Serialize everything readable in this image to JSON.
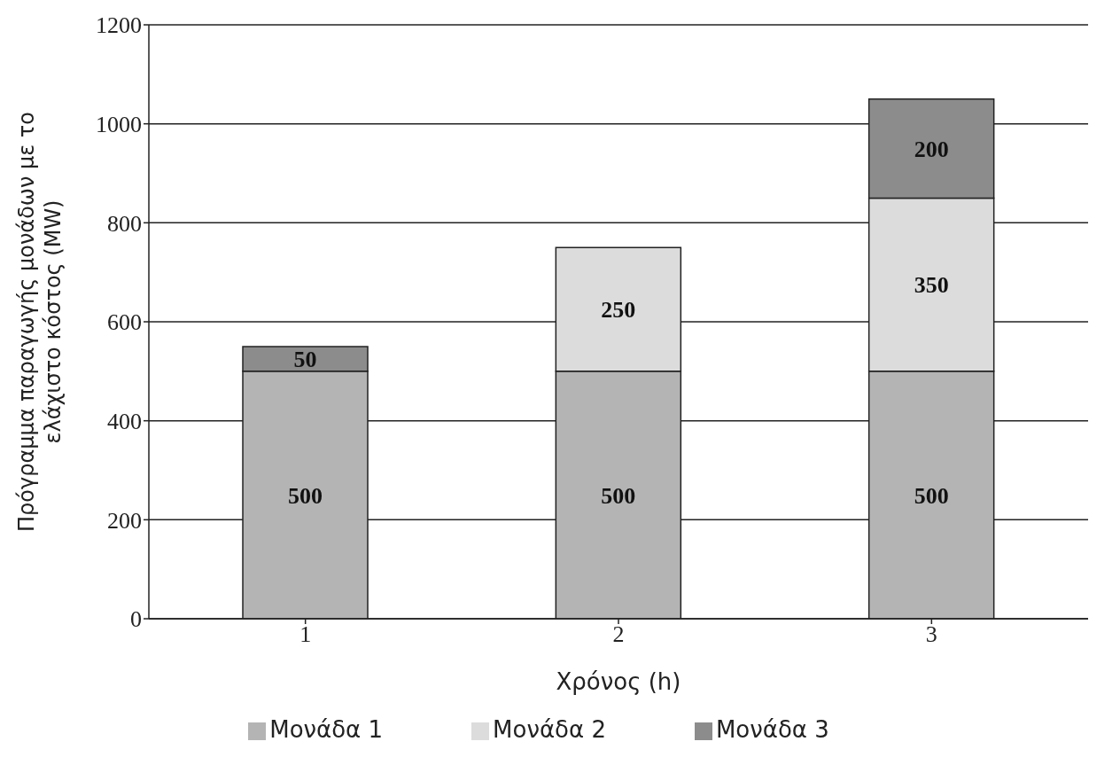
{
  "chart_data": {
    "type": "bar",
    "stacked": true,
    "xlabel": "Χρόνος (h)",
    "ylabel": "Πρόγραμμα παραγωγής μονάδων με το ελάχιστο κόστος (MW)",
    "categories": [
      "1",
      "2",
      "3"
    ],
    "series": [
      {
        "name": "Μονάδα 1",
        "color": "#b4b4b4",
        "values": [
          500,
          500,
          500
        ]
      },
      {
        "name": "Μονάδα 2",
        "color": "#dcdcdc",
        "values": [
          null,
          250,
          350
        ]
      },
      {
        "name": "Μονάδα 3",
        "color": "#8c8c8c",
        "values": [
          50,
          null,
          200
        ]
      }
    ],
    "ylim": [
      0,
      1200
    ],
    "yticks": [
      0,
      200,
      400,
      600,
      800,
      1000,
      1200
    ],
    "grid": "y",
    "legend": "bottom",
    "data_labels": true
  }
}
